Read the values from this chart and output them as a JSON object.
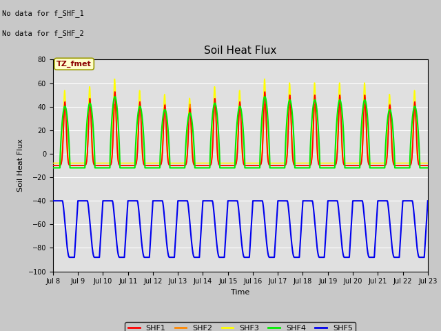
{
  "title": "Soil Heat Flux",
  "xlabel": "Time",
  "ylabel": "Soil Heat Flux",
  "ylim": [
    -100,
    80
  ],
  "yticks": [
    -100,
    -80,
    -60,
    -40,
    -20,
    0,
    20,
    40,
    60,
    80
  ],
  "xtick_labels": [
    "Jul 8",
    "Jul 9",
    "Jul 10",
    "Jul 11",
    "Jul 12",
    "Jul 13",
    "Jul 14",
    "Jul 15",
    "Jul 16",
    "Jul 17",
    "Jul 18",
    "Jul 19",
    "Jul 20",
    "Jul 21",
    "Jul 22",
    "Jul 23"
  ],
  "no_data_line1": "No data for f_SHF_1",
  "no_data_line2": "No data for f_SHF_2",
  "tz_label": "TZ_fmet",
  "colors": {
    "SHF1": "#ff0000",
    "SHF2": "#ff8800",
    "SHF3": "#ffff00",
    "SHF4": "#00ee00",
    "SHF5": "#0000ee"
  },
  "legend_labels": [
    "SHF1",
    "SHF2",
    "SHF3",
    "SHF4",
    "SHF5"
  ],
  "fig_bg": "#c8c8c8",
  "plot_bg": "#e0e0e0",
  "grid_color": "#ffffff"
}
